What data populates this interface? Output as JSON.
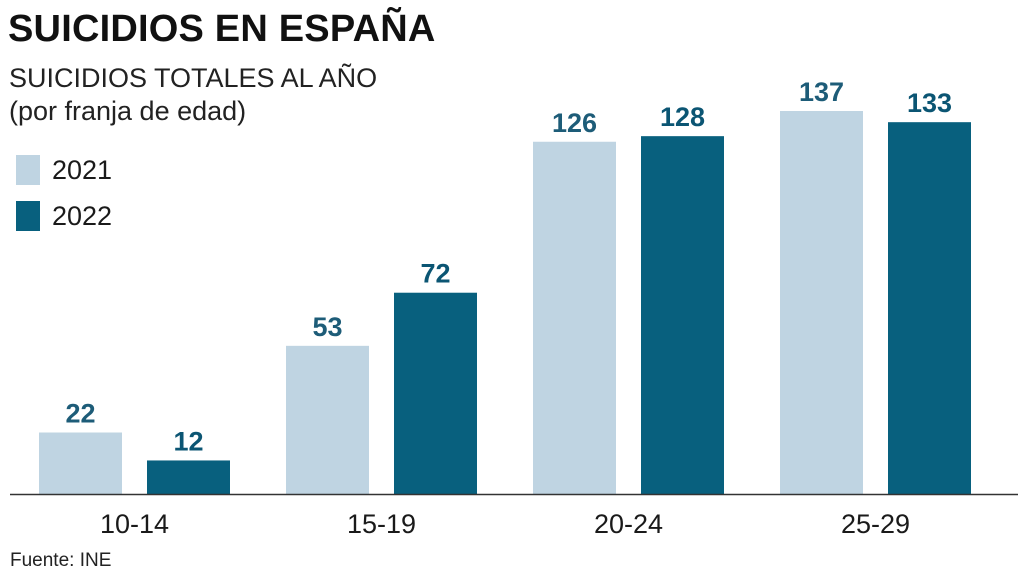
{
  "header": {
    "title": "SUICIDIOS EN ESPAÑA",
    "subtitle": "SUICIDIOS TOTALES AL AÑO",
    "subtitle_note": "(por franja de edad)"
  },
  "source": "Fuente: INE",
  "colors": {
    "series_2021": "#bfd4e2",
    "series_2022": "#08607e",
    "label_2021": "#1d5c78",
    "label_2022": "#0b5573",
    "axis": "#333333"
  },
  "chart_data": {
    "type": "bar",
    "title": "SUICIDIOS EN ESPAÑA",
    "subtitle": "SUICIDIOS TOTALES AL AÑO (por franja de edad)",
    "xlabel": "",
    "ylabel": "",
    "categories": [
      "10-14",
      "15-19",
      "20-24",
      "25-29"
    ],
    "series": [
      {
        "name": "2021",
        "values": [
          22,
          53,
          126,
          137
        ]
      },
      {
        "name": "2022",
        "values": [
          12,
          72,
          128,
          133
        ]
      }
    ],
    "ylim": [
      0,
      137
    ],
    "grid": false,
    "legend": "top-left",
    "data_labels": true
  }
}
